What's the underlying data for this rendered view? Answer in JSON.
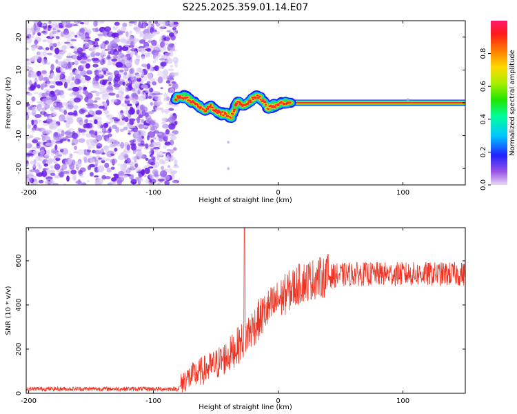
{
  "chart_data": [
    {
      "type": "heatmap",
      "title": "S225.2025.359.01.14.E07",
      "xlabel": "Height of straight line (km)",
      "ylabel": "Frequency (Hz)",
      "xlim": [
        -202,
        150
      ],
      "ylim": [
        -25,
        25
      ],
      "xticks": [
        -200,
        -100,
        0,
        100
      ],
      "yticks": [
        -20,
        -10,
        0,
        10,
        20
      ],
      "xtick_labels": [
        "-200",
        "-100",
        "0",
        "100"
      ],
      "ytick_labels": [
        "-20",
        "-10",
        "0",
        "10",
        "20"
      ],
      "noise_region_x": [
        -202,
        -84
      ],
      "carrier_trace": [
        {
          "x": -82,
          "f": 1.5
        },
        {
          "x": -78,
          "f": 2.0
        },
        {
          "x": -74,
          "f": 1.8
        },
        {
          "x": -70,
          "f": 0.5
        },
        {
          "x": -66,
          "f": 0.0
        },
        {
          "x": -62,
          "f": -1.5
        },
        {
          "x": -58,
          "f": -2.2
        },
        {
          "x": -54,
          "f": -1.0
        },
        {
          "x": -50,
          "f": -2.5
        },
        {
          "x": -46,
          "f": -3.5
        },
        {
          "x": -42,
          "f": -3.2
        },
        {
          "x": -38,
          "f": -4.5
        },
        {
          "x": -35,
          "f": -2.0
        },
        {
          "x": -32,
          "f": 0.5
        },
        {
          "x": -28,
          "f": -0.8
        },
        {
          "x": -24,
          "f": 0.3
        },
        {
          "x": -20,
          "f": 1.2
        },
        {
          "x": -16,
          "f": 2.0
        },
        {
          "x": -12,
          "f": 0.5
        },
        {
          "x": -8,
          "f": -1.5
        },
        {
          "x": -4,
          "f": -0.8
        },
        {
          "x": 0,
          "f": -0.5
        },
        {
          "x": 5,
          "f": 0.2
        },
        {
          "x": 10,
          "f": 0.0
        }
      ],
      "steady_band": {
        "x_start": 8,
        "x_end": 150,
        "f": 0.0
      },
      "stray_points": [
        {
          "x": -40,
          "f": -12
        },
        {
          "x": -40,
          "f": -20
        },
        {
          "x": 104,
          "f": 1.0
        }
      ],
      "colorbar": {
        "label": "Normalized spectral amplitude",
        "range": [
          0,
          1
        ],
        "ticks": [
          "0.0",
          "0.2",
          "0.4",
          "0.6",
          "0.8"
        ],
        "tick_values": [
          0.0,
          0.2,
          0.4,
          0.6,
          0.8
        ]
      }
    },
    {
      "type": "line",
      "xlabel": "Height of straight line (km)",
      "ylabel": "SNR (10 * v/v)",
      "xlim": [
        -202,
        150
      ],
      "ylim": [
        0,
        750
      ],
      "xticks": [
        -200,
        -100,
        0,
        100
      ],
      "yticks": [
        0,
        200,
        400,
        600
      ],
      "xtick_labels": [
        "-200",
        "-100",
        "0",
        "100"
      ],
      "ytick_labels": [
        "0",
        "200",
        "400",
        "600"
      ],
      "series": [
        {
          "name": "SNR",
          "color": "#ee3322",
          "trend": [
            {
              "x": -202,
              "y": 20
            },
            {
              "x": -80,
              "y": 20
            },
            {
              "x": -75,
              "y": 60
            },
            {
              "x": -65,
              "y": 90
            },
            {
              "x": -50,
              "y": 130
            },
            {
              "x": -40,
              "y": 170
            },
            {
              "x": -30,
              "y": 230
            },
            {
              "x": -20,
              "y": 300
            },
            {
              "x": -10,
              "y": 370
            },
            {
              "x": 0,
              "y": 420
            },
            {
              "x": 10,
              "y": 470
            },
            {
              "x": 20,
              "y": 505
            },
            {
              "x": 30,
              "y": 520
            },
            {
              "x": 40,
              "y": 530
            },
            {
              "x": 60,
              "y": 540
            },
            {
              "x": 100,
              "y": 540
            },
            {
              "x": 150,
              "y": 540
            }
          ],
          "spike": {
            "x": -27,
            "y": 750
          },
          "peak_annotation": {
            "x": 40,
            "y": 630
          }
        }
      ]
    }
  ]
}
